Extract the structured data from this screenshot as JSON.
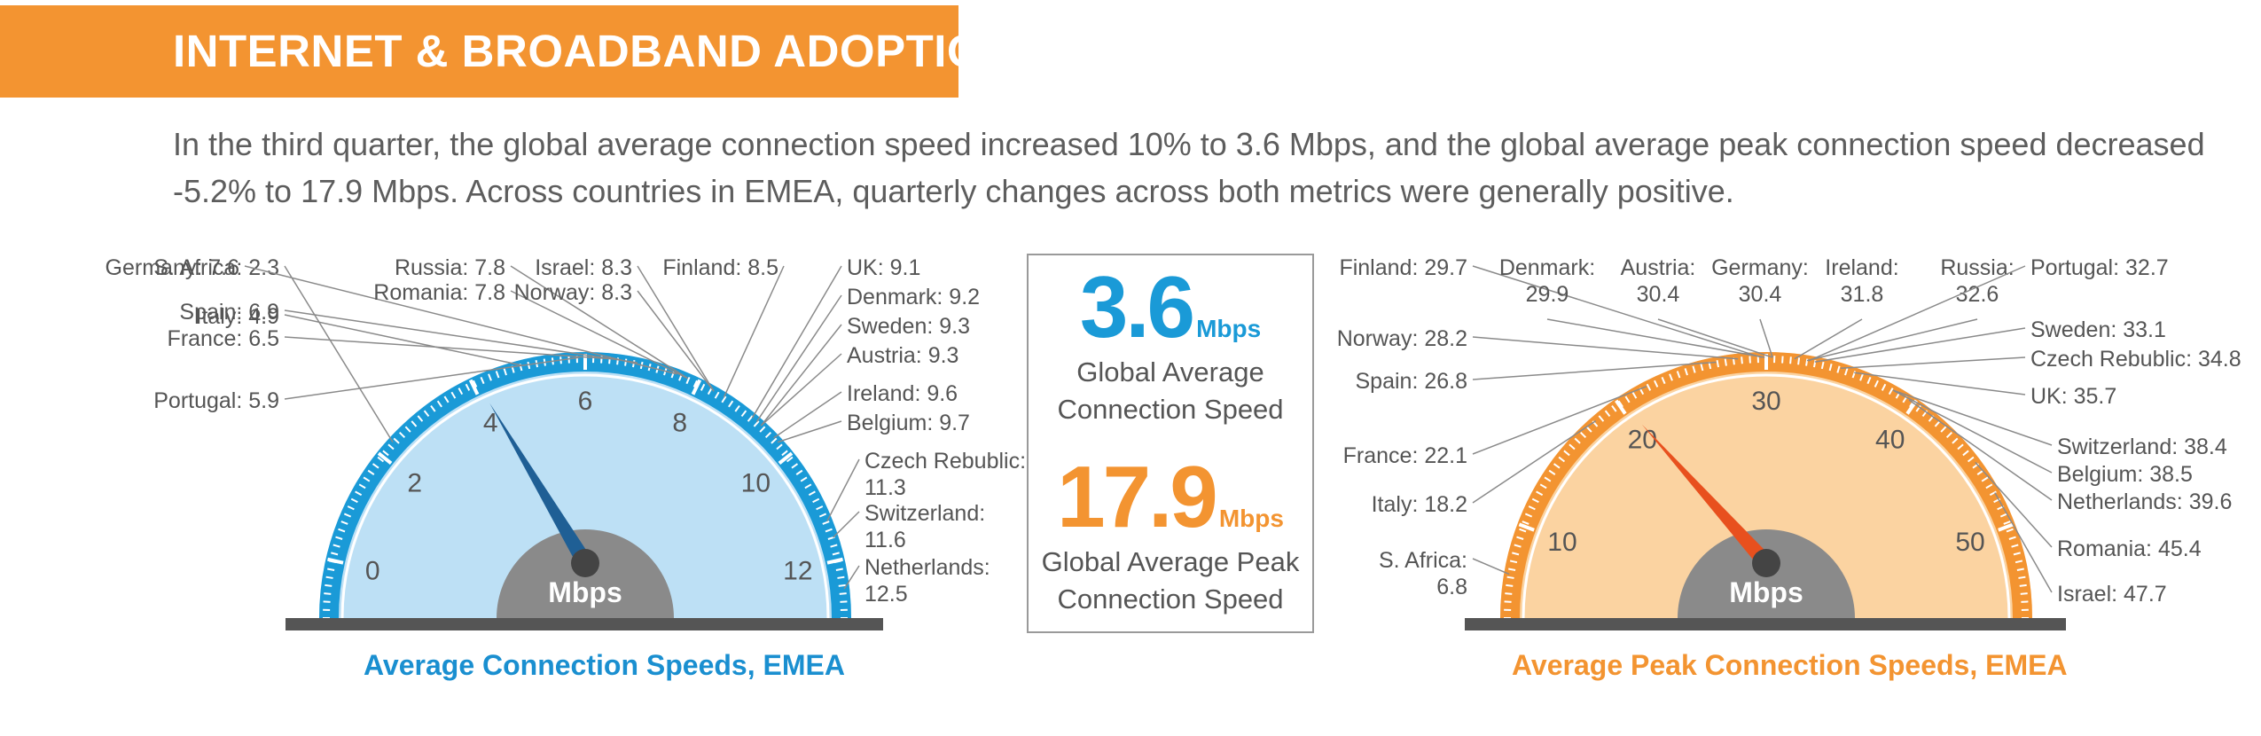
{
  "banner": {
    "title": "INTERNET & BROADBAND ADOPTION"
  },
  "intro": {
    "line1": "In the third quarter, the global average connection speed increased 10% to 3.6 Mbps, and the global average peak connection speed decreased",
    "line2": "-5.2% to 17.9 Mbps. Across countries in EMEA, quarterly changes across both metrics were generally positive."
  },
  "stats": {
    "avg": {
      "value": "3.6",
      "unit": "Mbps",
      "line1": "Global Average",
      "line2": "Connection Speed"
    },
    "peak": {
      "value": "17.9",
      "unit": "Mbps",
      "line1": "Global Average Peak",
      "line2": "Connection Speed"
    }
  },
  "colors": {
    "orange": "#f39431",
    "blue": "#1a9ad7",
    "blue_fill": "#bde0f5",
    "orange_fill": "#fbd3a1",
    "hub": "#8a8a8a",
    "base": "#555555"
  },
  "chart_data": [
    {
      "type": "gauge",
      "title": "Average Connection Speeds, EMEA",
      "unit": "Mbps",
      "range": [
        -1,
        13
      ],
      "tick_labels": [
        0,
        2,
        4,
        6,
        8,
        10,
        12
      ],
      "needle": 3.6,
      "points": [
        {
          "label": "S. Africa: 2.3",
          "value": 2.3
        },
        {
          "label": "Italy: 4.9",
          "value": 4.9
        },
        {
          "label": "Portugal: 5.9",
          "value": 5.9
        },
        {
          "label": "France: 6.5",
          "value": 6.5
        },
        {
          "label": "Spain: 6.9",
          "value": 6.9
        },
        {
          "label": "Germany: 7.6",
          "value": 7.6
        },
        {
          "label": "Romania: 7.8",
          "value": 7.8
        },
        {
          "label": "Russia: 7.8",
          "value": 7.8
        },
        {
          "label": "Norway: 8.3",
          "value": 8.3
        },
        {
          "label": "Israel: 8.3",
          "value": 8.3
        },
        {
          "label": "Finland: 8.5",
          "value": 8.5
        },
        {
          "label": "UK: 9.1",
          "value": 9.1
        },
        {
          "label": "Denmark: 9.2",
          "value": 9.2
        },
        {
          "label": "Sweden: 9.3",
          "value": 9.3
        },
        {
          "label": "Austria: 9.3",
          "value": 9.3
        },
        {
          "label": "Ireland: 9.6",
          "value": 9.6
        },
        {
          "label": "Belgium: 9.7",
          "value": 9.7
        },
        {
          "label": "Czech Rebublic:\n11.3",
          "value": 11.3
        },
        {
          "label": "Switzerland:\n11.6",
          "value": 11.6
        },
        {
          "label": "Netherlands:\n12.5",
          "value": 12.5
        }
      ]
    },
    {
      "type": "gauge",
      "title": "Average Peak Connection Speeds, EMEA",
      "unit": "Mbps",
      "range": [
        4,
        56
      ],
      "tick_labels": [
        10,
        20,
        30,
        40,
        50
      ],
      "needle": 17.9,
      "points": [
        {
          "label": "S. Africa:\n6.8",
          "value": 6.8
        },
        {
          "label": "Italy: 18.2",
          "value": 18.2
        },
        {
          "label": "France: 22.1",
          "value": 22.1
        },
        {
          "label": "Spain: 26.8",
          "value": 26.8
        },
        {
          "label": "Norway: 28.2",
          "value": 28.2
        },
        {
          "label": "Finland: 29.7",
          "value": 29.7
        },
        {
          "label": "Denmark:\n29.9",
          "value": 29.9
        },
        {
          "label": "Austria:\n30.4",
          "value": 30.4
        },
        {
          "label": "Germany:\n30.4",
          "value": 30.4
        },
        {
          "label": "Ireland:\n31.8",
          "value": 31.8
        },
        {
          "label": "Russia:\n32.6",
          "value": 32.6
        },
        {
          "label": "Portugal: 32.7",
          "value": 32.7
        },
        {
          "label": "Sweden: 33.1",
          "value": 33.1
        },
        {
          "label": "Czech Rebublic: 34.8",
          "value": 34.8
        },
        {
          "label": "UK: 35.7",
          "value": 35.7
        },
        {
          "label": "Switzerland: 38.4",
          "value": 38.4
        },
        {
          "label": "Belgium: 38.5",
          "value": 38.5
        },
        {
          "label": "Netherlands: 39.6",
          "value": 39.6
        },
        {
          "label": "Romania: 45.4",
          "value": 45.4
        },
        {
          "label": "Israel: 47.7",
          "value": 47.7
        }
      ]
    }
  ]
}
